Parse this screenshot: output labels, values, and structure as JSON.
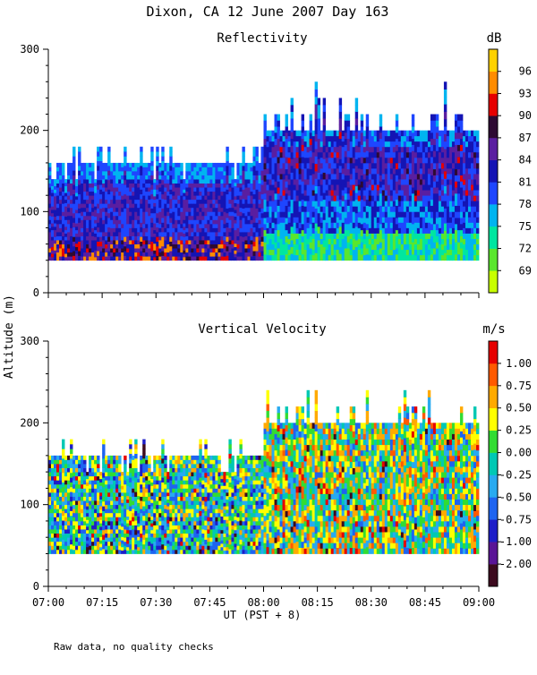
{
  "title": "Dixon, CA 12 June 2007  Day 163",
  "ylabel": "Altitude (m)",
  "xlabel": "UT  (PST + 8)",
  "footnote": "Raw data, no quality checks",
  "chart_data": [
    {
      "type": "heatmap",
      "title": "Reflectivity",
      "unit": "dB",
      "x_ticks": [
        "07:00",
        "07:15",
        "07:30",
        "07:45",
        "08:00",
        "08:15",
        "08:30",
        "08:45",
        "09:00"
      ],
      "x_range": [
        "07:00",
        "09:00"
      ],
      "y_ticks": [
        0,
        100,
        200,
        300
      ],
      "ylim": [
        0,
        300
      ],
      "colorbar": {
        "labels": [
          "69",
          "72",
          "75",
          "78",
          "81",
          "84",
          "87",
          "90",
          "93",
          "96"
        ],
        "colors": [
          "#c8ff00",
          "#5ae62d",
          "#00e6a0",
          "#00b4f0",
          "#1e46ff",
          "#1414b4",
          "#5a1ea0",
          "#2d0a32",
          "#e60000",
          "#ff8c00",
          "#ffd200"
        ]
      },
      "data_range_m": [
        40,
        260
      ]
    },
    {
      "type": "heatmap",
      "title": "Vertical Velocity",
      "unit": "m/s",
      "x_ticks": [
        "07:00",
        "07:15",
        "07:30",
        "07:45",
        "08:00",
        "08:15",
        "08:30",
        "08:45",
        "09:00"
      ],
      "x_range": [
        "07:00",
        "09:00"
      ],
      "y_ticks": [
        0,
        100,
        200,
        300
      ],
      "ylim": [
        0,
        300
      ],
      "colorbar": {
        "labels": [
          "1.00",
          "0.75",
          "0.50",
          "0.25",
          "0.00",
          "-0.25",
          "-0.50",
          "-0.75",
          "-1.00",
          "-2.00"
        ],
        "colors": [
          "#3c0a1e",
          "#5a1496",
          "#1e1ec8",
          "#1e64f0",
          "#28aaf0",
          "#00c8b4",
          "#32dc32",
          "#ffff00",
          "#ffaa00",
          "#ff5a00",
          "#e60000"
        ]
      },
      "data_range_m": [
        40,
        260
      ]
    }
  ]
}
